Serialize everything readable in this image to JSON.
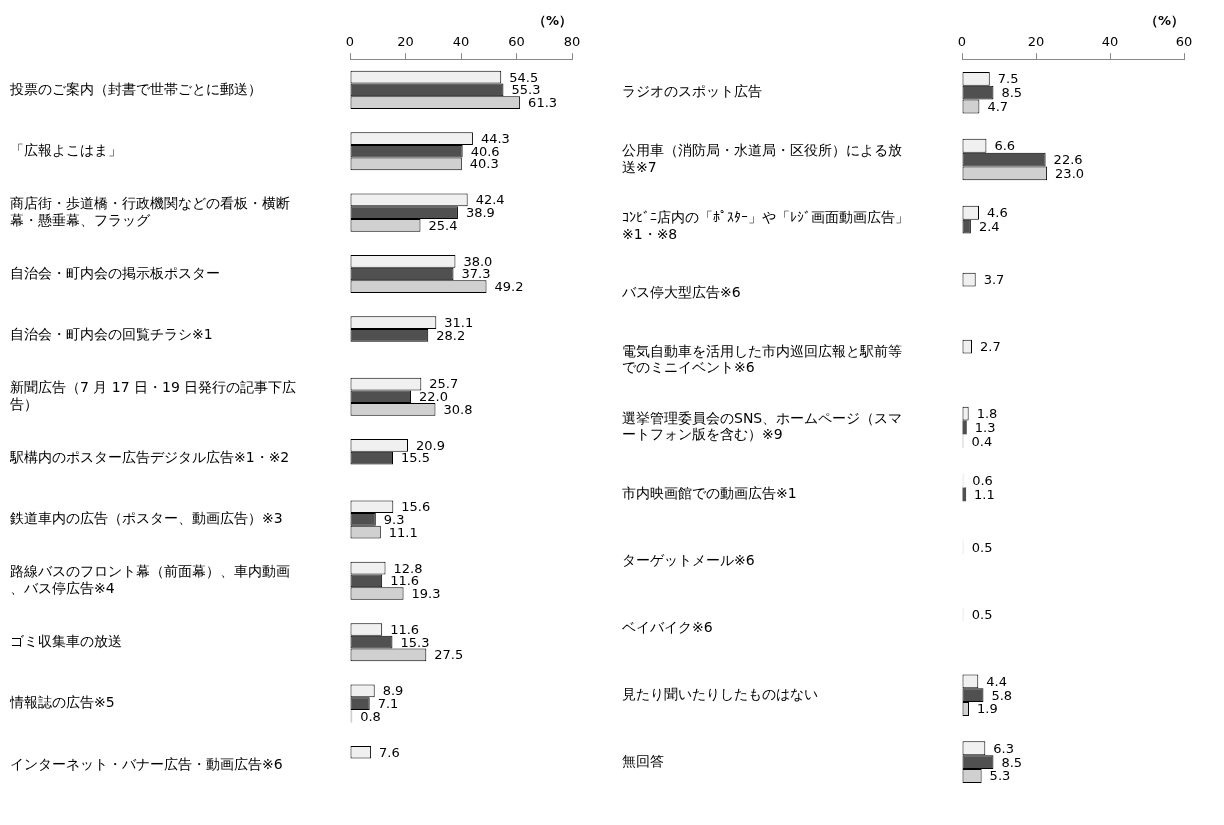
{
  "chart_data": [
    {
      "type": "bar",
      "orientation": "horizontal",
      "xlabel": "（%）",
      "xlim": [
        0,
        80
      ],
      "xticks": [
        0,
        20,
        40,
        60,
        80
      ],
      "categories": [
        "投票のご案内（封書で世帯ごとに郵送）",
        "「広報よこはま」",
        "商店街・歩道橋・行政機関などの看板・横断幕・懸垂幕、フラッグ",
        "自治会・町内会の掲示板ポスター",
        "自治会・町内会の回覧チラシ※1",
        "新聞広告（7 月 17 日・19 日発行の記事下広告）",
        "駅構内のポスター広告デジタル広告※1・※2",
        "鉄道車内の広告（ポスター、動画広告）※3",
        "路線バスのフロント幕（前面幕）、車内動画、バス停広告※4",
        "ゴミ収集車の放送",
        "情報誌の広告※5",
        "インターネット・バナー広告・動画広告※6"
      ],
      "series": [
        {
          "color": "#f0f0f0",
          "values": [
            54.5,
            44.3,
            42.4,
            38.0,
            31.1,
            25.7,
            20.9,
            15.6,
            12.8,
            11.6,
            8.9,
            7.6
          ],
          "value_labels": [
            "54.5",
            "44.3",
            "42.4",
            "38.0",
            "31.1",
            "25.7",
            "20.9",
            "15.6",
            "12.8",
            "11.6",
            "8.9",
            "7.6"
          ]
        },
        {
          "color": "#505050",
          "values": [
            55.3,
            40.6,
            38.9,
            37.3,
            28.2,
            22.0,
            15.5,
            9.3,
            11.6,
            15.3,
            7.1,
            null
          ],
          "value_labels": [
            "55.3",
            "40.6",
            "38.9",
            "37.3",
            "28.2",
            "22.0",
            "15.5",
            "9.3",
            "11.6",
            "15.3",
            "7.1",
            null
          ]
        },
        {
          "color": "#d0d0d0",
          "values": [
            61.3,
            40.3,
            25.4,
            49.2,
            null,
            30.8,
            null,
            11.1,
            19.3,
            27.5,
            0.8,
            null
          ],
          "value_labels": [
            "61.3",
            "40.3",
            "25.4",
            "49.2",
            null,
            "30.8",
            null,
            "11.1",
            "19.3",
            "27.5",
            "0.8",
            null
          ]
        }
      ]
    },
    {
      "type": "bar",
      "orientation": "horizontal",
      "xlabel": "（%）",
      "xlim": [
        0,
        60
      ],
      "xticks": [
        0,
        20,
        40,
        60
      ],
      "categories": [
        "ラジオのスポット広告",
        "公用車（消防局・水道局・区役所）による放送※7",
        "ｺﾝﾋﾞﾆ店内の「ﾎﾟｽﾀｰ」や「ﾚｼﾞ画面動画広告」※1・※8",
        "バス停大型広告※6",
        "電気自動車を活用した市内巡回広報と駅前等でのミニイベント※6",
        "選挙管理委員会のSNS、ホームページ（スマートフォン版を含む）※9",
        "市内映画館での動画広告※1",
        "ターゲットメール※6",
        "ベイバイク※6",
        "見たり聞いたりしたものはない",
        "無回答"
      ],
      "series": [
        {
          "color": "#f0f0f0",
          "values": [
            7.5,
            6.6,
            4.6,
            3.7,
            2.7,
            1.8,
            0.6,
            0.5,
            0.5,
            4.4,
            6.3
          ],
          "value_labels": [
            "7.5",
            "6.6",
            "4.6",
            "3.7",
            "2.7",
            "1.8",
            "0.6",
            "0.5",
            "0.5",
            "4.4",
            "6.3"
          ]
        },
        {
          "color": "#505050",
          "values": [
            8.5,
            22.6,
            2.4,
            null,
            null,
            1.3,
            1.1,
            null,
            null,
            5.8,
            8.5
          ],
          "value_labels": [
            "8.5",
            "22.6",
            "2.4",
            null,
            null,
            "1.3",
            "1.1",
            null,
            null,
            "5.8",
            "8.5"
          ]
        },
        {
          "color": "#d0d0d0",
          "values": [
            4.7,
            23.0,
            null,
            null,
            null,
            0.4,
            null,
            null,
            null,
            1.9,
            5.3
          ],
          "value_labels": [
            "4.7",
            "23.0",
            null,
            null,
            null,
            "0.4",
            null,
            null,
            null,
            "1.9",
            "5.3"
          ]
        }
      ]
    }
  ]
}
